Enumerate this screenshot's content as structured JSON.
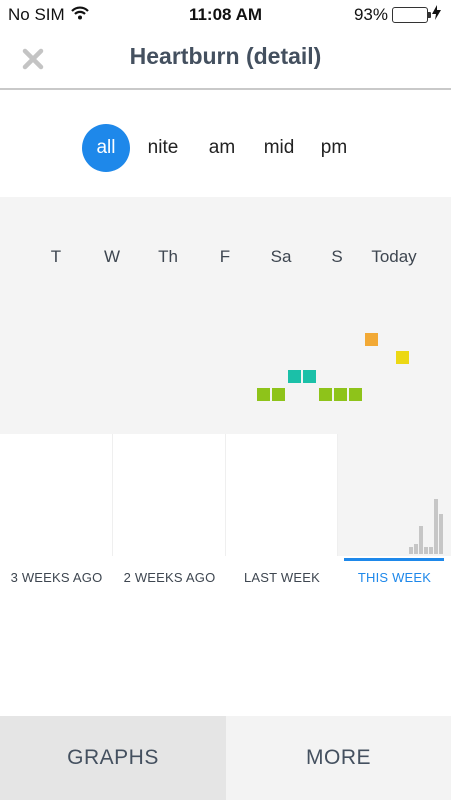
{
  "status_bar": {
    "carrier": "No SIM",
    "time": "11:08 AM",
    "battery": "93%",
    "battery_level": 0.93
  },
  "header": {
    "title": "Heartburn (detail)",
    "close_icon": "close-x-icon"
  },
  "segments": {
    "all": "all",
    "nite": "nite",
    "am": "am",
    "mid": "mid",
    "pm": "pm",
    "selected": "all"
  },
  "days": [
    "T",
    "W",
    "Th",
    "F",
    "Sa",
    "S",
    "Today"
  ],
  "entries": [
    {
      "day": "Sa",
      "color": "#8ec31a"
    },
    {
      "day": "Sa",
      "color": "#8ec31a"
    },
    {
      "day": "Sa",
      "color": "#1bc0a8"
    },
    {
      "day": "Sa",
      "color": "#1bc0a8"
    },
    {
      "day": "S",
      "color": "#8ec31a"
    },
    {
      "day": "S",
      "color": "#8ec31a"
    },
    {
      "day": "S",
      "color": "#8ec31a"
    },
    {
      "day": "Today",
      "color": "#f2a935"
    },
    {
      "day": "Today",
      "color": "#ecd814"
    }
  ],
  "weeks": {
    "w3": "3 WEEKS AGO",
    "w2": "2 WEEKS AGO",
    "w1": "LAST WEEK",
    "current": "THIS WEEK"
  },
  "tabs": {
    "graphs": "GRAPHS",
    "more": "MORE"
  },
  "colors": {
    "accent": "#1e88ea",
    "green": "#8ec31a",
    "teal": "#1bc0a8",
    "orange": "#f2a935",
    "yellow": "#ecd814"
  }
}
